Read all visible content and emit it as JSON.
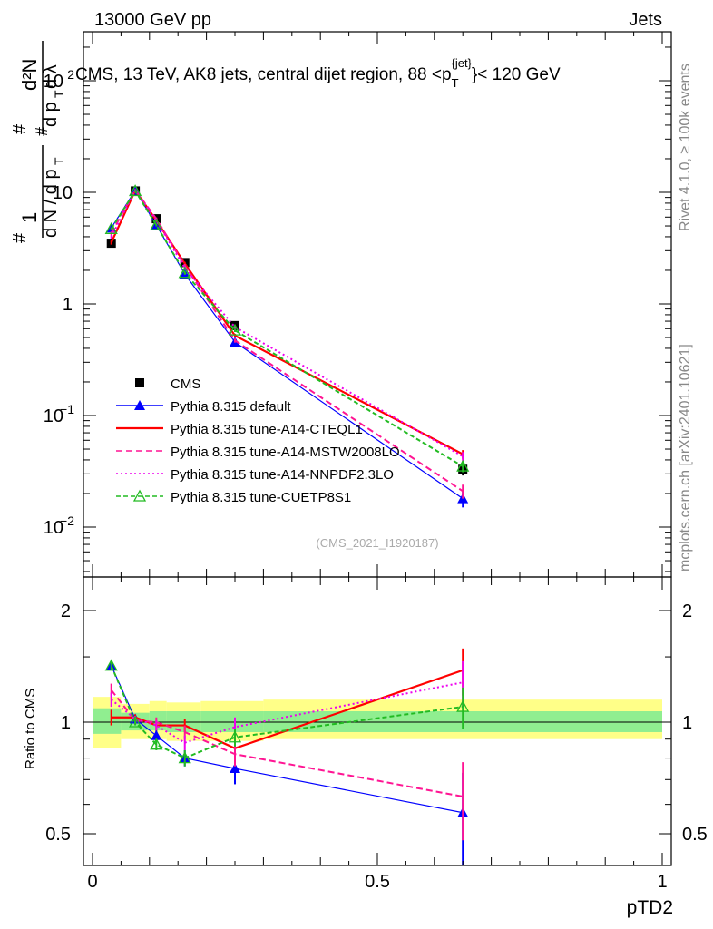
{
  "header": {
    "left": "13000 GeV pp",
    "right": "Jets"
  },
  "side_labels": {
    "rivet": "Rivet 4.1.0, ≥ 100k events",
    "mcplots": "mcplots.cern.ch [arXiv:2401.10621]"
  },
  "watermark": "(CMS_2021_I1920187)",
  "colors": {
    "cms": "#000000",
    "default": "#0000ff",
    "cteql1": "#ff0000",
    "mstw": "#ff1493",
    "nnpdf": "#ee00ee",
    "cuetp8s1": "#22bb22",
    "band_inner": "#90ee90",
    "band_outer": "#ffff88"
  },
  "chart_data": [
    {
      "type": "line",
      "panel": "main",
      "title": "CMS, 13 TeV, AK8 jets, central dijet region, 88 <p_T^{jet}> < 120 GeV",
      "xlabel": "pTD2",
      "ylabel": "1/dN/dp_T  d²N/dp_T dλ",
      "yscale": "log",
      "xlim": [
        -0.03,
        1.0
      ],
      "ylim": [
        0.004,
        400
      ],
      "y_tick_labels": [
        "10^{-2}",
        "10^{-1}",
        "1",
        "10",
        "10^{2}"
      ],
      "x": [
        0.033,
        0.075,
        0.112,
        0.162,
        0.25,
        0.65
      ],
      "series": [
        {
          "name": "CMS",
          "key": "cms",
          "style": "square",
          "values": [
            3.5,
            10.3,
            5.8,
            2.35,
            0.64,
            0.033
          ],
          "errors": [
            0.3,
            0.4,
            0.3,
            0.15,
            0.04,
            0.004
          ]
        },
        {
          "name": "Pythia 8.315 default",
          "key": "default",
          "style": "solid-triangle",
          "values": [
            4.8,
            10.4,
            5.1,
            1.85,
            0.455,
            0.018
          ],
          "errors": [
            0.15,
            0.2,
            0.15,
            0.07,
            0.02,
            0.003
          ]
        },
        {
          "name": "Pythia 8.315 tune-A14-CTEQL1",
          "key": "cteql1",
          "style": "solid-line",
          "values": [
            3.55,
            10.4,
            5.6,
            2.3,
            0.52,
            0.045
          ],
          "errors": [
            0.15,
            0.2,
            0.15,
            0.08,
            0.02,
            0.004
          ]
        },
        {
          "name": "Pythia 8.315 tune-A14-MSTW2008LO",
          "key": "mstw",
          "style": "dashed",
          "values": [
            4.3,
            10.5,
            5.8,
            2.2,
            0.47,
            0.021
          ],
          "errors": [
            0.15,
            0.2,
            0.15,
            0.08,
            0.02,
            0.003
          ]
        },
        {
          "name": "Pythia 8.315 tune-A14-NNPDF2.3LO",
          "key": "nnpdf",
          "style": "dotted",
          "values": [
            4.0,
            10.4,
            5.6,
            2.1,
            0.62,
            0.043
          ],
          "errors": [
            0.15,
            0.2,
            0.15,
            0.08,
            0.02,
            0.004
          ]
        },
        {
          "name": "Pythia 8.315 tune-CUETP8S1",
          "key": "cuetp8s1",
          "style": "dashed-open-triangle",
          "values": [
            4.7,
            10.3,
            5.1,
            1.9,
            0.58,
            0.035
          ],
          "errors": [
            0.15,
            0.2,
            0.15,
            0.07,
            0.02,
            0.004
          ]
        }
      ]
    },
    {
      "type": "line",
      "panel": "ratio",
      "ylabel": "Ratio to CMS",
      "xlabel": "pTD2",
      "yscale": "log",
      "ylim": [
        0.4,
        2.4
      ],
      "y_ticks": [
        0.5,
        1,
        2
      ],
      "x_ticks": [
        0,
        0.5,
        1
      ],
      "x": [
        0.033,
        0.075,
        0.112,
        0.162,
        0.25,
        0.65
      ],
      "band_edges": [
        0.0,
        0.05,
        0.1,
        0.13,
        0.19,
        0.3,
        1.0
      ],
      "band_inner": [
        [
          0.93,
          1.09
        ],
        [
          0.95,
          1.06
        ],
        [
          0.95,
          1.07
        ],
        [
          0.94,
          1.07
        ],
        [
          0.94,
          1.07
        ],
        [
          0.94,
          1.07
        ]
      ],
      "band_outer": [
        [
          0.85,
          1.17
        ],
        [
          0.9,
          1.12
        ],
        [
          0.9,
          1.14
        ],
        [
          0.89,
          1.13
        ],
        [
          0.89,
          1.14
        ],
        [
          0.9,
          1.15
        ]
      ],
      "series": [
        {
          "name": "Pythia 8.315 default",
          "key": "default",
          "style": "solid-triangle",
          "values": [
            1.42,
            1.02,
            0.92,
            0.8,
            0.75,
            0.57
          ],
          "errors": [
            0.04,
            0.02,
            0.03,
            0.04,
            0.07,
            0.16
          ]
        },
        {
          "name": "Pythia 8.315 tune-A14-CTEQL1",
          "key": "cteql1",
          "style": "solid-line",
          "values": [
            1.03,
            1.03,
            0.98,
            0.98,
            0.85,
            1.38
          ],
          "errors": [
            0.05,
            0.02,
            0.03,
            0.04,
            0.06,
            0.2
          ]
        },
        {
          "name": "Pythia 8.315 tune-A14-MSTW2008LO",
          "key": "mstw",
          "style": "dashed",
          "values": [
            1.22,
            1.01,
            1.0,
            0.94,
            0.82,
            0.63
          ],
          "errors": [
            0.05,
            0.02,
            0.03,
            0.04,
            0.06,
            0.15
          ]
        },
        {
          "name": "Pythia 8.315 tune-A14-NNPDF2.3LO",
          "key": "nnpdf",
          "style": "dotted",
          "values": [
            1.15,
            1.02,
            0.98,
            0.88,
            0.97,
            1.28
          ],
          "errors": [
            0.05,
            0.02,
            0.03,
            0.04,
            0.06,
            0.18
          ]
        },
        {
          "name": "Pythia 8.315 tune-CUETP8S1",
          "key": "cuetp8s1",
          "style": "dashed-open-triangle",
          "values": [
            1.42,
            1.0,
            0.87,
            0.8,
            0.91,
            1.1
          ],
          "errors": [
            0.04,
            0.02,
            0.03,
            0.04,
            0.05,
            0.14
          ]
        }
      ]
    }
  ]
}
